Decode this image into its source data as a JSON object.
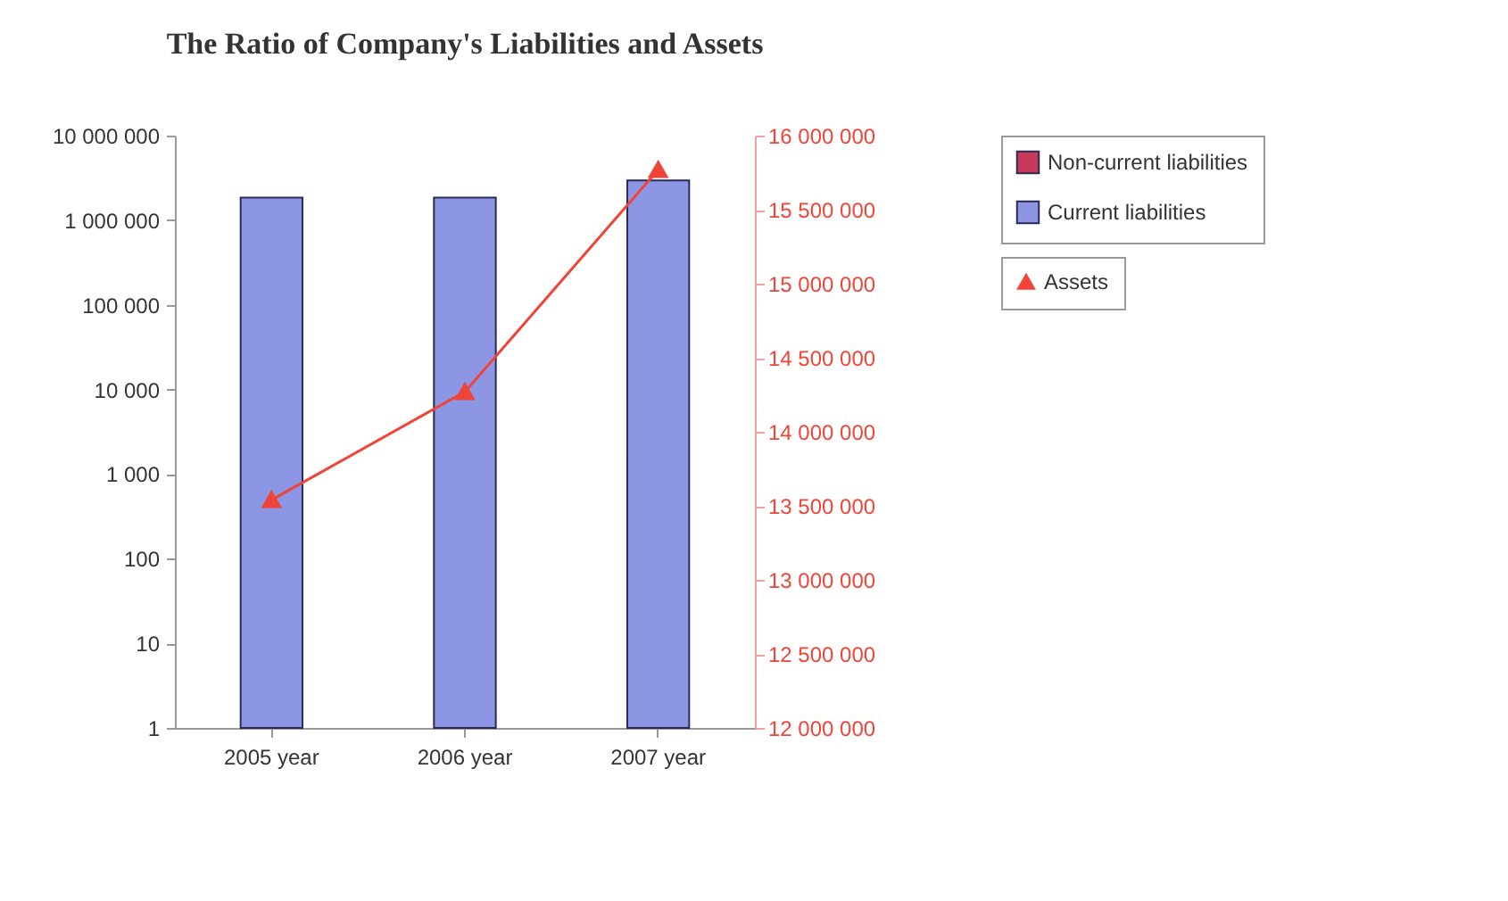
{
  "chart_data": {
    "type": "bar",
    "title": "The Ratio of Company's Liabilities and Assets",
    "categories": [
      "2005 year",
      "2006 year",
      "2007 year"
    ],
    "log": "y",
    "legend": "right",
    "grid": false,
    "ylim": [
      1,
      10000000
    ],
    "yticks": [
      {
        "value": 1,
        "label": "1"
      },
      {
        "value": 10,
        "label": "10"
      },
      {
        "value": 100,
        "label": "100"
      },
      {
        "value": 1000,
        "label": "1 000"
      },
      {
        "value": 10000,
        "label": "10 000"
      },
      {
        "value": 100000,
        "label": "100 000"
      },
      {
        "value": 1000000,
        "label": "1 000 000"
      },
      {
        "value": 10000000,
        "label": "10 000 000"
      }
    ],
    "y2lim": [
      12000000,
      16000000
    ],
    "y2ticks": [
      {
        "value": 12000000,
        "label": "12 000 000"
      },
      {
        "value": 12500000,
        "label": "12 500 000"
      },
      {
        "value": 13000000,
        "label": "13 000 000"
      },
      {
        "value": 13500000,
        "label": "13 500 000"
      },
      {
        "value": 14000000,
        "label": "14 000 000"
      },
      {
        "value": 14500000,
        "label": "14 500 000"
      },
      {
        "value": 15000000,
        "label": "15 000 000"
      },
      {
        "value": 15500000,
        "label": "15 500 000"
      },
      {
        "value": 16000000,
        "label": "16 000 000"
      }
    ],
    "series": [
      {
        "name": "Non-current liabilities",
        "color": "#c8385a",
        "values": [
          null,
          null,
          null
        ]
      },
      {
        "name": "Current liabilities",
        "color": "#8c96e4",
        "values": [
          1850000,
          1850000,
          2950000
        ]
      },
      {
        "name": "Assets",
        "type": "line",
        "axis": "y2",
        "color": "#f04438",
        "marker": "triangle",
        "values": [
          13540000,
          14270000,
          15770000
        ]
      }
    ]
  }
}
